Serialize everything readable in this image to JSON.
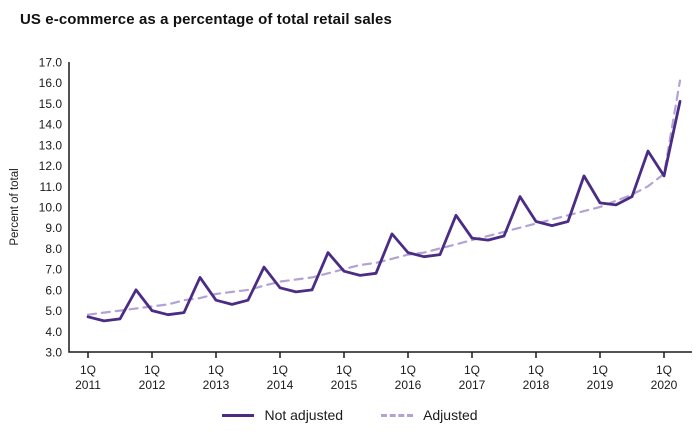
{
  "title": "US e-commerce as a percentage of total retail sales",
  "colors": {
    "not_adjusted_line": "#4b2c85",
    "adjusted_line": "#b3a2d4",
    "axis": "#1a1a1a",
    "text": "#1a1a1a"
  },
  "legend": {
    "items": [
      {
        "label": "Not adjusted",
        "style": "solid"
      },
      {
        "label": "Adjusted",
        "style": "dashed"
      }
    ]
  },
  "chart_data": {
    "type": "line",
    "title": "US e-commerce as a percentage of total retail sales",
    "xlabel": "",
    "ylabel": "Percent of total",
    "ylim": [
      3.0,
      17.0
    ],
    "ytick_step": 1.0,
    "grid": false,
    "legend_position": "bottom-center",
    "x_unit": "quarters from 1Q 2011 to 2Q 2020",
    "x_tick_top_label": "1Q",
    "x_tick_years": [
      "2011",
      "2012",
      "2013",
      "2014",
      "2015",
      "2016",
      "2017",
      "2018",
      "2019",
      "2020"
    ],
    "series": [
      {
        "name": "Not adjusted",
        "style": "solid",
        "values": [
          4.7,
          4.5,
          4.6,
          6.0,
          5.0,
          4.8,
          4.9,
          6.6,
          5.5,
          5.3,
          5.5,
          7.1,
          6.1,
          5.9,
          6.0,
          7.8,
          6.9,
          6.7,
          6.8,
          8.7,
          7.8,
          7.6,
          7.7,
          9.6,
          8.5,
          8.4,
          8.6,
          10.5,
          9.3,
          9.1,
          9.3,
          11.5,
          10.2,
          10.1,
          10.5,
          12.7,
          11.5,
          15.1
        ]
      },
      {
        "name": "Adjusted",
        "style": "dashed",
        "values": [
          4.8,
          4.9,
          5.0,
          5.1,
          5.2,
          5.3,
          5.5,
          5.6,
          5.8,
          5.9,
          6.0,
          6.2,
          6.4,
          6.5,
          6.6,
          6.8,
          7.0,
          7.2,
          7.3,
          7.5,
          7.7,
          7.8,
          8.0,
          8.2,
          8.4,
          8.6,
          8.8,
          9.0,
          9.2,
          9.4,
          9.6,
          9.8,
          10.0,
          10.3,
          10.6,
          11.0,
          11.6,
          16.1
        ]
      }
    ]
  }
}
